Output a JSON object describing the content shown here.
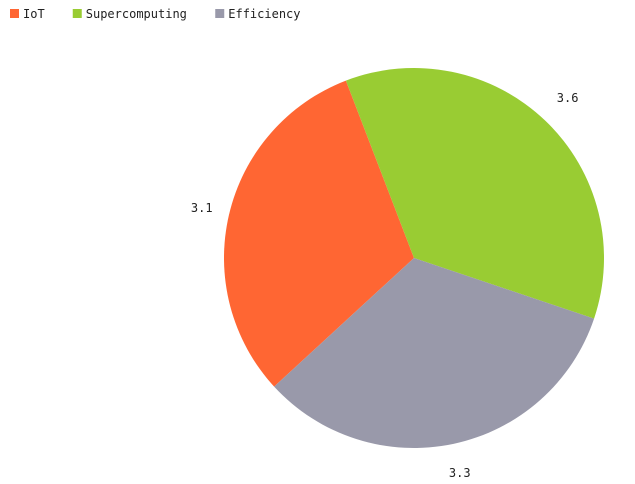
{
  "chart_data": {
    "type": "pie",
    "categories": [
      "IoT",
      "Supercomputing",
      "Efficiency"
    ],
    "values": [
      3.1,
      3.6,
      3.3
    ],
    "data_labels": [
      "3.1",
      "3.6",
      "3.3"
    ],
    "colors": [
      "#ff6633",
      "#99cc33",
      "#9999aa"
    ],
    "legend": {
      "placement": "top-left",
      "entries": [
        "IoT",
        "Supercomputing",
        "Efficiency"
      ]
    }
  }
}
